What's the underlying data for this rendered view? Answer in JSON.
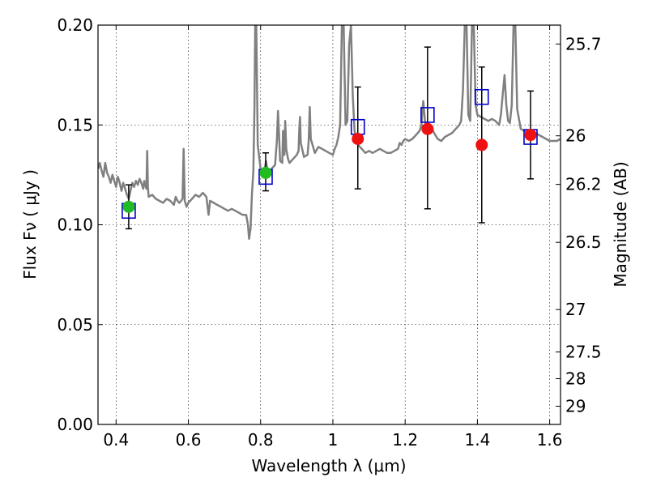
{
  "chart_data": {
    "type": "scatter",
    "xlabel": "Wavelength  λ (μm)",
    "ylabel": "Flux  Fν  ( μJy )",
    "ylabel_right": "Magnitude (AB)",
    "xlim": [
      0.35,
      1.63
    ],
    "ylim": [
      0.0,
      0.2
    ],
    "x_ticks": [
      0.4,
      0.6,
      0.8,
      1.0,
      1.2,
      1.4,
      1.6
    ],
    "x_tick_labels": [
      "0.4",
      "0.6",
      "0.8",
      "1",
      "1.2",
      "1.4",
      "1.6"
    ],
    "y_ticks": [
      0.0,
      0.05,
      0.1,
      0.15,
      0.2
    ],
    "y_tick_labels": [
      "0.00",
      "0.05",
      "0.10",
      "0.15",
      "0.20"
    ],
    "right_ticks": [
      {
        "mag": 25.7,
        "label": "25.7"
      },
      {
        "mag": 26.0,
        "label": "26"
      },
      {
        "mag": 26.2,
        "label": "26.2"
      },
      {
        "mag": 26.5,
        "label": "26.5"
      },
      {
        "mag": 27.0,
        "label": "27"
      },
      {
        "mag": 27.5,
        "label": "27.5"
      },
      {
        "mag": 28.0,
        "label": "28"
      },
      {
        "mag": 29.0,
        "label": "29"
      }
    ],
    "grid": true,
    "colors": {
      "model": "#808080",
      "model_boxes": "#0000cc",
      "obs_optical": "#22bb22",
      "obs_nir": "#ee1111",
      "error": "#000000"
    },
    "model_spectrum": [
      [
        0.35,
        0.128
      ],
      [
        0.355,
        0.131
      ],
      [
        0.36,
        0.127
      ],
      [
        0.365,
        0.124
      ],
      [
        0.37,
        0.131
      ],
      [
        0.375,
        0.126
      ],
      [
        0.38,
        0.124
      ],
      [
        0.385,
        0.121
      ],
      [
        0.39,
        0.125
      ],
      [
        0.395,
        0.122
      ],
      [
        0.4,
        0.119
      ],
      [
        0.405,
        0.124
      ],
      [
        0.41,
        0.121
      ],
      [
        0.415,
        0.117
      ],
      [
        0.42,
        0.121
      ],
      [
        0.425,
        0.118
      ],
      [
        0.43,
        0.115
      ],
      [
        0.435,
        0.113
      ],
      [
        0.44,
        0.117
      ],
      [
        0.445,
        0.121
      ],
      [
        0.45,
        0.119
      ],
      [
        0.455,
        0.122
      ],
      [
        0.46,
        0.12
      ],
      [
        0.465,
        0.123
      ],
      [
        0.47,
        0.121
      ],
      [
        0.475,
        0.118
      ],
      [
        0.478,
        0.122
      ],
      [
        0.48,
        0.12
      ],
      [
        0.484,
        0.118
      ],
      [
        0.486,
        0.137
      ],
      [
        0.488,
        0.119
      ],
      [
        0.49,
        0.114
      ],
      [
        0.5,
        0.115
      ],
      [
        0.51,
        0.113
      ],
      [
        0.52,
        0.112
      ],
      [
        0.53,
        0.111
      ],
      [
        0.54,
        0.113
      ],
      [
        0.55,
        0.112
      ],
      [
        0.56,
        0.11
      ],
      [
        0.565,
        0.114
      ],
      [
        0.57,
        0.112
      ],
      [
        0.575,
        0.111
      ],
      [
        0.58,
        0.112
      ],
      [
        0.584,
        0.113
      ],
      [
        0.587,
        0.138
      ],
      [
        0.59,
        0.112
      ],
      [
        0.595,
        0.109
      ],
      [
        0.6,
        0.111
      ],
      [
        0.61,
        0.113
      ],
      [
        0.62,
        0.115
      ],
      [
        0.63,
        0.114
      ],
      [
        0.64,
        0.116
      ],
      [
        0.65,
        0.114
      ],
      [
        0.656,
        0.105
      ],
      [
        0.66,
        0.112
      ],
      [
        0.67,
        0.111
      ],
      [
        0.68,
        0.11
      ],
      [
        0.69,
        0.109
      ],
      [
        0.7,
        0.108
      ],
      [
        0.71,
        0.107
      ],
      [
        0.72,
        0.108
      ],
      [
        0.73,
        0.107
      ],
      [
        0.74,
        0.106
      ],
      [
        0.75,
        0.105
      ],
      [
        0.76,
        0.105
      ],
      [
        0.765,
        0.1
      ],
      [
        0.768,
        0.093
      ],
      [
        0.772,
        0.098
      ],
      [
        0.776,
        0.115
      ],
      [
        0.78,
        0.127
      ],
      [
        0.783,
        0.16
      ],
      [
        0.785,
        0.2
      ],
      [
        0.788,
        0.2
      ],
      [
        0.792,
        0.14
      ],
      [
        0.8,
        0.128
      ],
      [
        0.81,
        0.126
      ],
      [
        0.815,
        0.132
      ],
      [
        0.82,
        0.126
      ],
      [
        0.83,
        0.128
      ],
      [
        0.84,
        0.13
      ],
      [
        0.845,
        0.142
      ],
      [
        0.848,
        0.157
      ],
      [
        0.851,
        0.145
      ],
      [
        0.854,
        0.132
      ],
      [
        0.86,
        0.131
      ],
      [
        0.862,
        0.147
      ],
      [
        0.864,
        0.138
      ],
      [
        0.866,
        0.135
      ],
      [
        0.868,
        0.152
      ],
      [
        0.871,
        0.138
      ],
      [
        0.876,
        0.133
      ],
      [
        0.88,
        0.131
      ],
      [
        0.89,
        0.133
      ],
      [
        0.9,
        0.135
      ],
      [
        0.905,
        0.137
      ],
      [
        0.907,
        0.148
      ],
      [
        0.909,
        0.154
      ],
      [
        0.911,
        0.141
      ],
      [
        0.92,
        0.134
      ],
      [
        0.93,
        0.135
      ],
      [
        0.933,
        0.142
      ],
      [
        0.936,
        0.159
      ],
      [
        0.939,
        0.143
      ],
      [
        0.95,
        0.136
      ],
      [
        0.96,
        0.139
      ],
      [
        0.97,
        0.138
      ],
      [
        0.98,
        0.137
      ],
      [
        0.99,
        0.136
      ],
      [
        1.0,
        0.135
      ],
      [
        1.005,
        0.138
      ],
      [
        1.01,
        0.14
      ],
      [
        1.015,
        0.144
      ],
      [
        1.02,
        0.15
      ],
      [
        1.025,
        0.2
      ],
      [
        1.03,
        0.2
      ],
      [
        1.035,
        0.15
      ],
      [
        1.04,
        0.152
      ],
      [
        1.045,
        0.19
      ],
      [
        1.05,
        0.2
      ],
      [
        1.055,
        0.165
      ],
      [
        1.06,
        0.147
      ],
      [
        1.07,
        0.14
      ],
      [
        1.08,
        0.138
      ],
      [
        1.09,
        0.136
      ],
      [
        1.1,
        0.137
      ],
      [
        1.11,
        0.136
      ],
      [
        1.12,
        0.137
      ],
      [
        1.13,
        0.138
      ],
      [
        1.14,
        0.137
      ],
      [
        1.15,
        0.136
      ],
      [
        1.16,
        0.136
      ],
      [
        1.17,
        0.137
      ],
      [
        1.18,
        0.138
      ],
      [
        1.185,
        0.141
      ],
      [
        1.19,
        0.14
      ],
      [
        1.195,
        0.142
      ],
      [
        1.2,
        0.143
      ],
      [
        1.21,
        0.142
      ],
      [
        1.22,
        0.143
      ],
      [
        1.23,
        0.145
      ],
      [
        1.24,
        0.147
      ],
      [
        1.245,
        0.15
      ],
      [
        1.25,
        0.162
      ],
      [
        1.255,
        0.152
      ],
      [
        1.26,
        0.148
      ],
      [
        1.27,
        0.15
      ],
      [
        1.28,
        0.146
      ],
      [
        1.29,
        0.143
      ],
      [
        1.3,
        0.142
      ],
      [
        1.31,
        0.144
      ],
      [
        1.32,
        0.145
      ],
      [
        1.33,
        0.146
      ],
      [
        1.34,
        0.148
      ],
      [
        1.35,
        0.15
      ],
      [
        1.355,
        0.152
      ],
      [
        1.36,
        0.168
      ],
      [
        1.365,
        0.2
      ],
      [
        1.37,
        0.2
      ],
      [
        1.375,
        0.155
      ],
      [
        1.38,
        0.152
      ],
      [
        1.385,
        0.2
      ],
      [
        1.39,
        0.2
      ],
      [
        1.395,
        0.16
      ],
      [
        1.4,
        0.155
      ],
      [
        1.41,
        0.154
      ],
      [
        1.42,
        0.153
      ],
      [
        1.43,
        0.152
      ],
      [
        1.44,
        0.153
      ],
      [
        1.45,
        0.152
      ],
      [
        1.46,
        0.15
      ],
      [
        1.465,
        0.155
      ],
      [
        1.47,
        0.165
      ],
      [
        1.475,
        0.175
      ],
      [
        1.48,
        0.16
      ],
      [
        1.485,
        0.152
      ],
      [
        1.49,
        0.151
      ],
      [
        1.495,
        0.16
      ],
      [
        1.5,
        0.2
      ],
      [
        1.505,
        0.2
      ],
      [
        1.51,
        0.158
      ],
      [
        1.52,
        0.148
      ],
      [
        1.53,
        0.147
      ],
      [
        1.54,
        0.146
      ],
      [
        1.55,
        0.145
      ],
      [
        1.56,
        0.146
      ],
      [
        1.57,
        0.145
      ],
      [
        1.58,
        0.144
      ],
      [
        1.59,
        0.143
      ],
      [
        1.6,
        0.142
      ],
      [
        1.61,
        0.142
      ],
      [
        1.62,
        0.142
      ],
      [
        1.63,
        0.143
      ]
    ],
    "model_boxes": [
      {
        "x": 0.435,
        "y": 0.107
      },
      {
        "x": 0.814,
        "y": 0.124
      },
      {
        "x": 1.069,
        "y": 0.149
      },
      {
        "x": 1.262,
        "y": 0.155
      },
      {
        "x": 1.412,
        "y": 0.164
      },
      {
        "x": 1.547,
        "y": 0.144
      }
    ],
    "observations": [
      {
        "x": 0.435,
        "y": 0.109,
        "yerr_low": 0.098,
        "yerr_high": 0.12,
        "band": "optical"
      },
      {
        "x": 0.814,
        "y": 0.126,
        "yerr_low": 0.117,
        "yerr_high": 0.136,
        "band": "optical"
      },
      {
        "x": 1.069,
        "y": 0.143,
        "yerr_low": 0.118,
        "yerr_high": 0.169,
        "band": "nir"
      },
      {
        "x": 1.262,
        "y": 0.148,
        "yerr_low": 0.108,
        "yerr_high": 0.189,
        "band": "nir"
      },
      {
        "x": 1.412,
        "y": 0.14,
        "yerr_low": 0.101,
        "yerr_high": 0.179,
        "band": "nir"
      },
      {
        "x": 1.547,
        "y": 0.145,
        "yerr_low": 0.123,
        "yerr_high": 0.167,
        "band": "nir"
      }
    ]
  }
}
